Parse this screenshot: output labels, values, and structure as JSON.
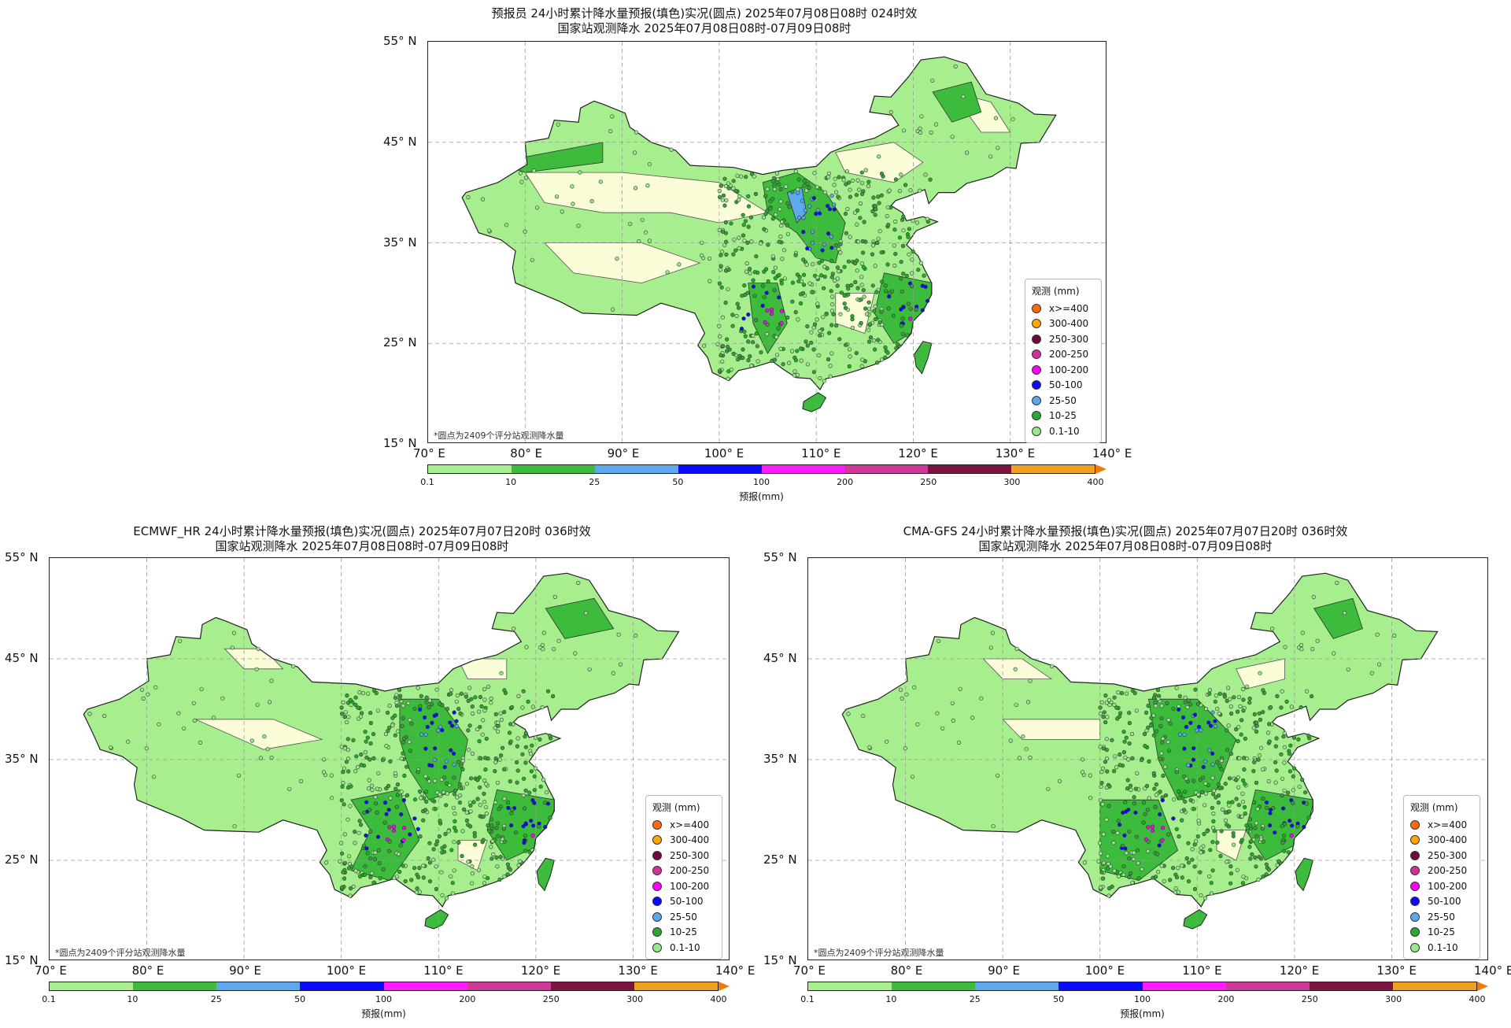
{
  "panels": [
    {
      "title1": "预报员 24小时累计降水量预报(填色)实况(圆点) 2025年07月08日08时 024时效",
      "title2": "国家站观测降水 2025年07月08日08时-07月09日08时"
    },
    {
      "title1": "ECMWF_HR 24小时累计降水量预报(填色)实况(圆点) 2025年07月07日20时 036时效",
      "title2": "国家站观测降水 2025年07月08日08时-07月09日08时"
    },
    {
      "title1": "CMA-GFS 24小时累计降水量预报(填色)实况(圆点) 2025年07月07日20时 036时效",
      "title2": "国家站观测降水 2025年07月08日08时-07月09日08时"
    }
  ],
  "axes": {
    "lon_ticks": [
      "70° E",
      "80° E",
      "90° E",
      "100° E",
      "110° E",
      "120° E",
      "130° E",
      "140° E"
    ],
    "lat_ticks": [
      "55° N",
      "45° N",
      "35° N",
      "25° N",
      "15° N"
    ],
    "lon_range": [
      70,
      140
    ],
    "lat_range": [
      15,
      55
    ],
    "grid": "dashed"
  },
  "note": "*圆点为2409个评分站观测降水量",
  "legend": {
    "title": "观测 (mm)",
    "items": [
      {
        "label": "x>=400",
        "color": "#ff6a10"
      },
      {
        "label": "300-400",
        "color": "#ffa500"
      },
      {
        "label": "250-300",
        "color": "#6e0a3a"
      },
      {
        "label": "200-250",
        "color": "#d2309a"
      },
      {
        "label": "100-200",
        "color": "#ff00ff"
      },
      {
        "label": "50-100",
        "color": "#0a0aff"
      },
      {
        "label": "25-50",
        "color": "#5aa9f0"
      },
      {
        "label": "10-25",
        "color": "#2ca82c"
      },
      {
        "label": "0.1-10",
        "color": "#98e88c"
      }
    ]
  },
  "colorbar": {
    "title": "预报(mm)",
    "ticks": [
      "0.1",
      "10",
      "25",
      "50",
      "100",
      "200",
      "250",
      "300",
      "400"
    ],
    "colors": [
      "#a6ee8e",
      "#3cbb3c",
      "#5fa8ee",
      "#0a0aff",
      "#ff1cff",
      "#cf3a9a",
      "#7b1440",
      "#f0a020"
    ],
    "extend_color": "#f07a10"
  }
}
